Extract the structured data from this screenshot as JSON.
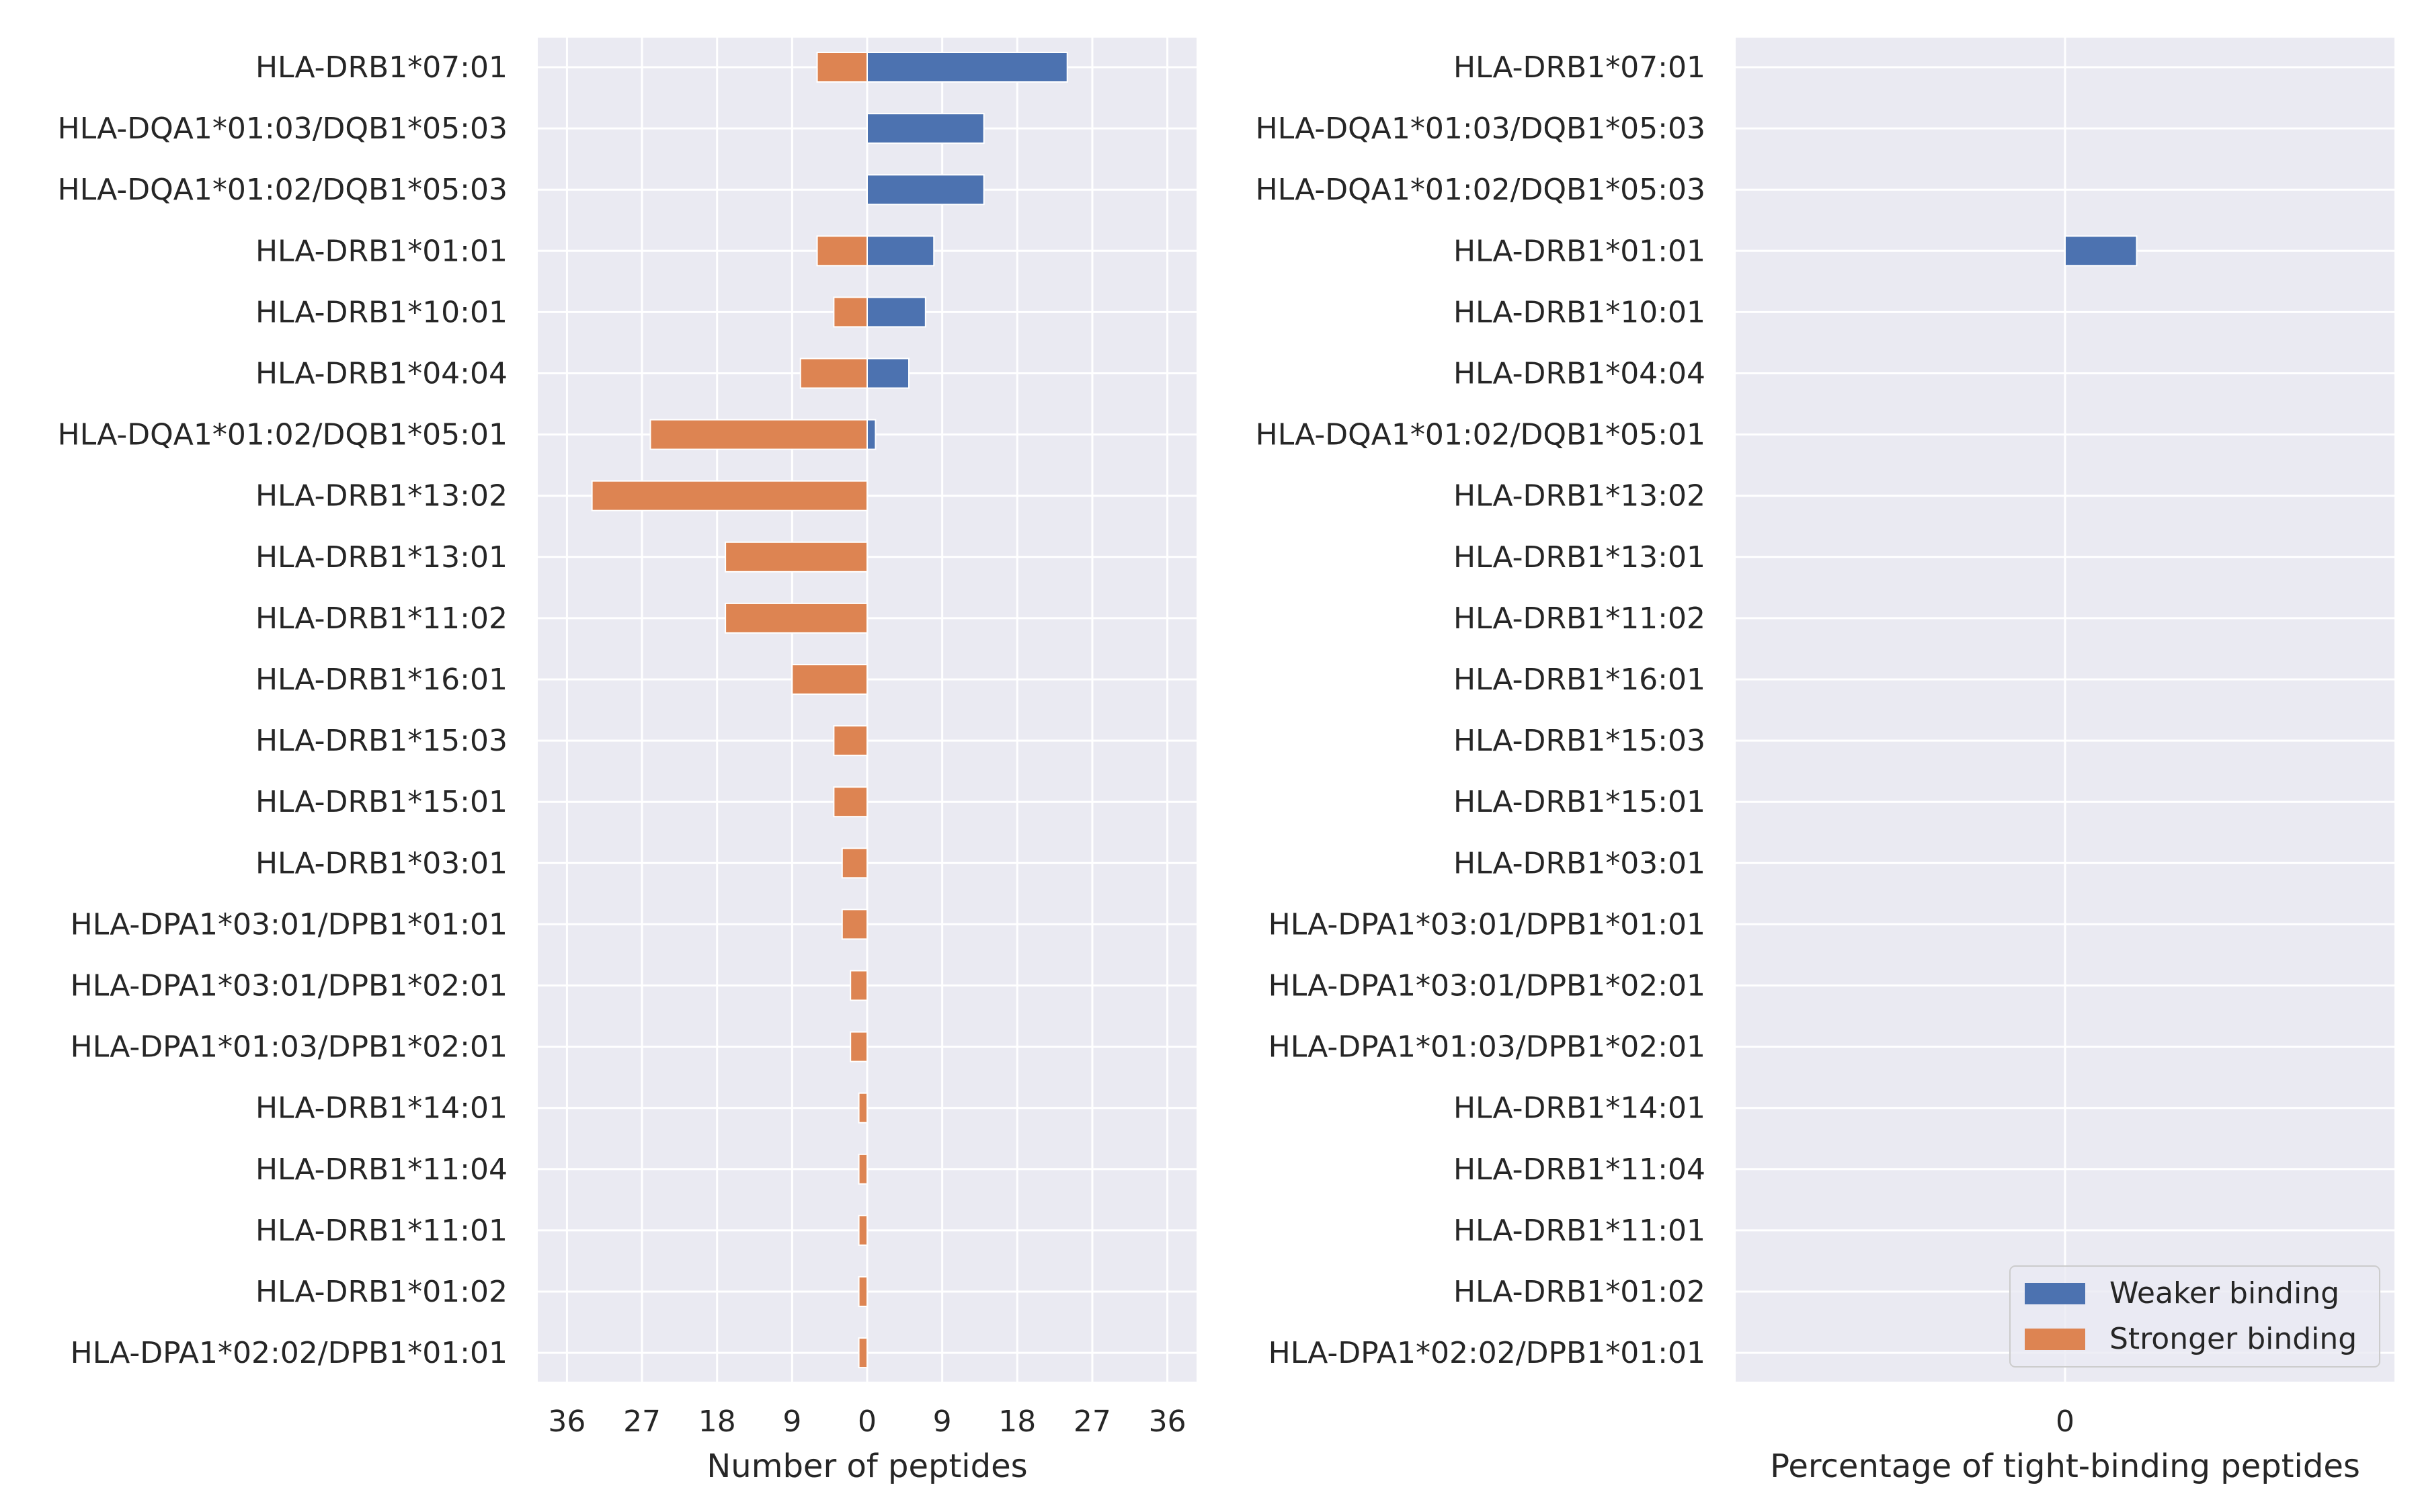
{
  "chart_data": [
    {
      "type": "bar",
      "orientation": "horizontal",
      "categories": [
        "HLA-DRB1*07:01",
        "HLA-DQA1*01:03/DQB1*05:03",
        "HLA-DQA1*01:02/DQB1*05:03",
        "HLA-DRB1*01:01",
        "HLA-DRB1*10:01",
        "HLA-DRB1*04:04",
        "HLA-DQA1*01:02/DQB1*05:01",
        "HLA-DRB1*13:02",
        "HLA-DRB1*13:01",
        "HLA-DRB1*11:02",
        "HLA-DRB1*16:01",
        "HLA-DRB1*15:03",
        "HLA-DRB1*15:01",
        "HLA-DRB1*03:01",
        "HLA-DPA1*03:01/DPB1*01:01",
        "HLA-DPA1*03:01/DPB1*02:01",
        "HLA-DPA1*01:03/DPB1*02:01",
        "HLA-DRB1*14:01",
        "HLA-DRB1*11:04",
        "HLA-DRB1*11:01",
        "HLA-DRB1*01:02",
        "HLA-DPA1*02:02/DPB1*01:01"
      ],
      "series": [
        {
          "name": "Weaker binding",
          "color": "#4c72b0",
          "values": [
            24,
            14,
            14,
            8,
            7,
            5,
            1,
            0,
            0,
            0,
            0,
            0,
            0,
            0,
            0,
            0,
            0,
            0,
            0,
            0,
            0,
            0
          ]
        },
        {
          "name": "Stronger binding",
          "color": "#dd8452",
          "values": [
            -6,
            0,
            0,
            -6,
            -4,
            -8,
            -26,
            -33,
            -17,
            -17,
            -9,
            -4,
            -4,
            -3,
            -3,
            -2,
            -2,
            -1,
            -1,
            -1,
            -1,
            -1
          ]
        }
      ],
      "xticks": [
        -36,
        -27,
        -18,
        -9,
        0,
        9,
        18,
        27,
        36
      ],
      "xtick_labels": [
        "36",
        "27",
        "18",
        "9",
        "0",
        "9",
        "18",
        "27",
        "36"
      ],
      "xlabel": "Number of peptides",
      "ylabel": "",
      "xlim": [
        -39.5,
        39.5
      ],
      "grid": true,
      "background": "#eaeaf2"
    },
    {
      "type": "bar",
      "orientation": "horizontal",
      "categories": [
        "HLA-DRB1*07:01",
        "HLA-DQA1*01:03/DQB1*05:03",
        "HLA-DQA1*01:02/DQB1*05:03",
        "HLA-DRB1*01:01",
        "HLA-DRB1*10:01",
        "HLA-DRB1*04:04",
        "HLA-DQA1*01:02/DQB1*05:01",
        "HLA-DRB1*13:02",
        "HLA-DRB1*13:01",
        "HLA-DRB1*11:02",
        "HLA-DRB1*16:01",
        "HLA-DRB1*15:03",
        "HLA-DRB1*15:01",
        "HLA-DRB1*03:01",
        "HLA-DPA1*03:01/DPB1*01:01",
        "HLA-DPA1*03:01/DPB1*02:01",
        "HLA-DPA1*01:03/DPB1*02:01",
        "HLA-DRB1*14:01",
        "HLA-DRB1*11:04",
        "HLA-DRB1*11:01",
        "HLA-DRB1*01:02",
        "HLA-DPA1*02:02/DPB1*01:01"
      ],
      "series": [
        {
          "name": "Weaker binding",
          "color": "#4c72b0",
          "values": [
            0,
            0,
            0,
            2.5,
            0,
            0,
            0,
            0,
            0,
            0,
            0,
            0,
            0,
            0,
            0,
            0,
            0,
            0,
            0,
            0,
            0,
            0
          ]
        },
        {
          "name": "Stronger binding",
          "color": "#dd8452",
          "values": [
            0,
            0,
            0,
            0,
            0,
            0,
            0,
            0,
            0,
            0,
            0,
            0,
            0,
            0,
            0,
            0,
            0,
            0,
            0,
            0,
            0,
            0
          ]
        }
      ],
      "xticks": [
        0
      ],
      "xtick_labels": [
        "0"
      ],
      "xlabel": "Percentage of tight-binding peptides",
      "ylabel": "",
      "xlim": [
        -11.5,
        11.5
      ],
      "grid": true,
      "background": "#eaeaf2",
      "legend": {
        "placement": "lower right",
        "entries": [
          "Weaker binding",
          "Stronger binding"
        ]
      }
    }
  ]
}
